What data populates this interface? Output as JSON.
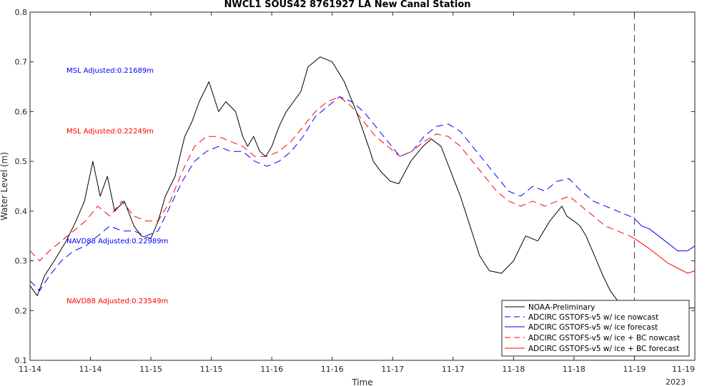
{
  "chart_data": {
    "type": "line",
    "title": "NWCL1 SOUS42 8761927 LA New Canal Station",
    "xlabel": "Time",
    "ylabel": "Water Level (m)",
    "ylim": [
      0.1,
      0.8
    ],
    "yticks": [
      "0.1",
      "0.2",
      "0.3",
      "0.4",
      "0.5",
      "0.6",
      "0.7",
      "0.8"
    ],
    "xlim": [
      0,
      5.5
    ],
    "xticks": [
      "11-14",
      "11-14",
      "11-15",
      "11-15",
      "11-16",
      "11-16",
      "11-17",
      "11-17",
      "11-18",
      "11-18",
      "11-19",
      "11-19"
    ],
    "xtick_sub": "2023",
    "forecast_start_x": 5.0,
    "grid": false,
    "legend_position": "bottom-right",
    "annotations": [
      {
        "text": "MSL Adjusted:0.21689m",
        "color": "#0000ff"
      },
      {
        "text": "MSL Adjusted:0.22249m",
        "color": "#ff0000"
      },
      {
        "text": "NAVD88 Adjusted:0.22989m",
        "color": "#0000ff"
      },
      {
        "text": "NAVD88 Adjusted:0.23549m",
        "color": "#ff0000"
      }
    ],
    "series": [
      {
        "name": "NOAA-Preliminary",
        "color": "#000000",
        "dash": "solid",
        "x": [
          0,
          0.06,
          0.12,
          0.2,
          0.3,
          0.38,
          0.45,
          0.52,
          0.58,
          0.64,
          0.7,
          0.78,
          0.86,
          0.92,
          1.0,
          1.06,
          1.12,
          1.2,
          1.28,
          1.34,
          1.4,
          1.48,
          1.56,
          1.62,
          1.7,
          1.76,
          1.8,
          1.85,
          1.9,
          1.95,
          2.0,
          2.06,
          2.12,
          2.18,
          2.24,
          2.3,
          2.4,
          2.5,
          2.6,
          2.7,
          2.8,
          2.84,
          2.9,
          2.98,
          3.05,
          3.15,
          3.25,
          3.32,
          3.4,
          3.48,
          3.56,
          3.64,
          3.72,
          3.8,
          3.9,
          4.0,
          4.1,
          4.2,
          4.3,
          4.4,
          4.44,
          4.5,
          4.55,
          4.6,
          4.67,
          4.74,
          4.8,
          4.86,
          4.92,
          4.96,
          5.0,
          5.03,
          5.06,
          5.1,
          5.2,
          5.3,
          5.5
        ],
        "y": [
          0.25,
          0.23,
          0.27,
          0.3,
          0.34,
          0.38,
          0.42,
          0.5,
          0.43,
          0.47,
          0.4,
          0.42,
          0.37,
          0.35,
          0.345,
          0.38,
          0.43,
          0.47,
          0.55,
          0.58,
          0.62,
          0.66,
          0.6,
          0.62,
          0.6,
          0.55,
          0.53,
          0.55,
          0.52,
          0.51,
          0.53,
          0.57,
          0.6,
          0.62,
          0.64,
          0.69,
          0.71,
          0.7,
          0.66,
          0.6,
          0.53,
          0.5,
          0.48,
          0.46,
          0.455,
          0.5,
          0.53,
          0.545,
          0.53,
          0.48,
          0.43,
          0.37,
          0.31,
          0.28,
          0.275,
          0.3,
          0.35,
          0.34,
          0.38,
          0.41,
          0.39,
          0.38,
          0.37,
          0.35,
          0.31,
          0.27,
          0.24,
          0.22,
          0.19,
          0.18,
          0.17,
          0.18,
          0.195,
          0.205,
          0.21,
          0.205,
          0.205
        ]
      },
      {
        "name": "ADCIRC GSTOFS-v5 w/ ice nowcast",
        "color": "#0000ff",
        "dash": "dashed",
        "x": [
          0,
          0.08,
          0.16,
          0.26,
          0.36,
          0.46,
          0.56,
          0.66,
          0.76,
          0.86,
          0.96,
          1.06,
          1.16,
          1.26,
          1.36,
          1.46,
          1.56,
          1.66,
          1.76,
          1.86,
          1.96,
          2.06,
          2.16,
          2.26,
          2.36,
          2.46,
          2.56,
          2.66,
          2.76,
          2.86,
          2.96,
          3.06,
          3.16,
          3.26,
          3.36,
          3.46,
          3.56,
          3.66,
          3.76,
          3.86,
          3.96,
          4.06,
          4.16,
          4.26,
          4.36,
          4.46,
          4.56,
          4.66,
          4.76,
          4.86,
          4.96,
          5.0
        ],
        "y": [
          0.26,
          0.24,
          0.27,
          0.3,
          0.32,
          0.33,
          0.35,
          0.37,
          0.36,
          0.36,
          0.35,
          0.36,
          0.41,
          0.46,
          0.5,
          0.52,
          0.53,
          0.52,
          0.52,
          0.5,
          0.49,
          0.5,
          0.52,
          0.55,
          0.59,
          0.61,
          0.63,
          0.62,
          0.6,
          0.57,
          0.54,
          0.51,
          0.52,
          0.55,
          0.57,
          0.575,
          0.56,
          0.53,
          0.5,
          0.47,
          0.44,
          0.43,
          0.45,
          0.44,
          0.46,
          0.465,
          0.44,
          0.42,
          0.41,
          0.4,
          0.39,
          0.385
        ]
      },
      {
        "name": "ADCIRC GSTOFS-v5 w/ ice forecast",
        "color": "#0000ff",
        "dash": "solid",
        "x": [
          5.0,
          5.06,
          5.12,
          5.2,
          5.28,
          5.36,
          5.44,
          5.5
        ],
        "y": [
          0.385,
          0.37,
          0.365,
          0.35,
          0.335,
          0.32,
          0.32,
          0.33
        ]
      },
      {
        "name": "ADCIRC GSTOFS-v5 w/ ice + BC nowcast",
        "color": "#ff0000",
        "dash": "dashed",
        "x": [
          0,
          0.08,
          0.16,
          0.26,
          0.36,
          0.46,
          0.56,
          0.66,
          0.76,
          0.86,
          0.96,
          1.06,
          1.16,
          1.26,
          1.36,
          1.46,
          1.56,
          1.66,
          1.76,
          1.86,
          1.96,
          2.06,
          2.16,
          2.26,
          2.36,
          2.46,
          2.56,
          2.66,
          2.76,
          2.86,
          2.96,
          3.06,
          3.16,
          3.26,
          3.36,
          3.46,
          3.56,
          3.66,
          3.76,
          3.86,
          3.96,
          4.06,
          4.16,
          4.26,
          4.36,
          4.46,
          4.56,
          4.66,
          4.76,
          4.86,
          4.96,
          5.0
        ],
        "y": [
          0.32,
          0.3,
          0.32,
          0.34,
          0.36,
          0.38,
          0.41,
          0.39,
          0.42,
          0.39,
          0.38,
          0.38,
          0.42,
          0.48,
          0.53,
          0.55,
          0.55,
          0.54,
          0.53,
          0.51,
          0.51,
          0.52,
          0.54,
          0.57,
          0.6,
          0.62,
          0.63,
          0.61,
          0.58,
          0.55,
          0.53,
          0.51,
          0.52,
          0.54,
          0.555,
          0.55,
          0.53,
          0.5,
          0.47,
          0.44,
          0.42,
          0.41,
          0.42,
          0.41,
          0.42,
          0.43,
          0.41,
          0.39,
          0.37,
          0.36,
          0.35,
          0.345
        ]
      },
      {
        "name": "ADCIRC GSTOFS-v5 w/ ice + BC forecast",
        "color": "#ff0000",
        "dash": "solid",
        "x": [
          5.0,
          5.06,
          5.12,
          5.2,
          5.28,
          5.36,
          5.44,
          5.5
        ],
        "y": [
          0.345,
          0.335,
          0.325,
          0.31,
          0.295,
          0.285,
          0.275,
          0.28
        ]
      }
    ]
  }
}
